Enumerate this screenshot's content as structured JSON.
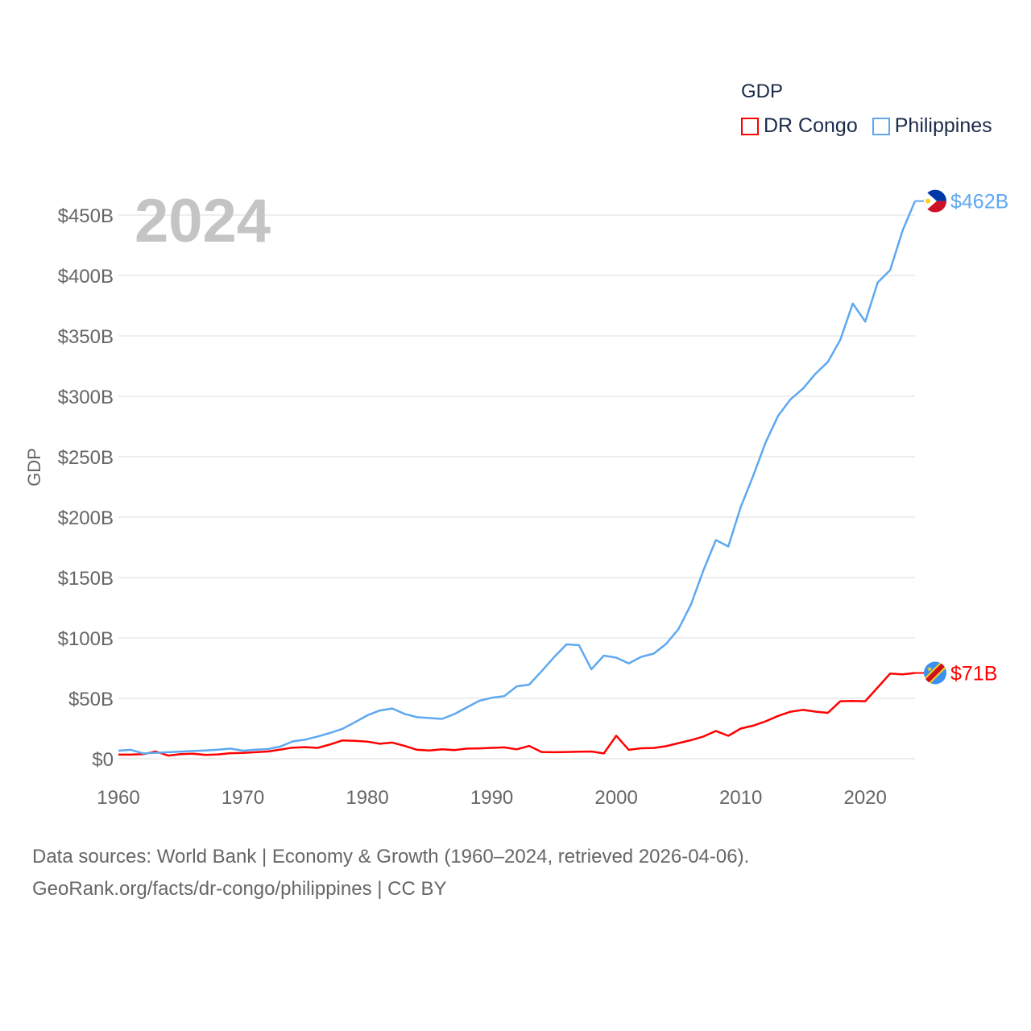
{
  "chart_data": {
    "type": "line",
    "title": "GDP",
    "ylabel": "GDP",
    "year_label": "2024",
    "xlim": [
      1960,
      2024
    ],
    "ylim": [
      0,
      450
    ],
    "x_ticks": [
      "1960",
      "1970",
      "1980",
      "1990",
      "2000",
      "2010",
      "2020"
    ],
    "y_ticks": [
      "$0",
      "$50B",
      "$100B",
      "$150B",
      "$200B",
      "$250B",
      "$300B",
      "$350B",
      "$400B",
      "$450B"
    ],
    "grid": true,
    "legend_placement": "top-right",
    "series": [
      {
        "name": "DR Congo",
        "color": "#ff0000",
        "end_label": "$71B",
        "flag": "dr-congo",
        "values": [
          3.4,
          3.4,
          3.8,
          6.0,
          2.6,
          3.8,
          4.2,
          3.2,
          3.6,
          4.6,
          4.8,
          5.4,
          6.0,
          7.6,
          9.2,
          9.6,
          9.0,
          11.8,
          15.2,
          14.8,
          14.2,
          12.4,
          13.4,
          10.6,
          7.4,
          6.8,
          7.8,
          7.2,
          8.4,
          8.6,
          9.0,
          9.4,
          7.8,
          10.6,
          5.6,
          5.4,
          5.6,
          5.8,
          6.0,
          4.4,
          19.1,
          7.4,
          8.7,
          8.9,
          10.4,
          12.9,
          15.4,
          18.4,
          23.0,
          19.0,
          25.0,
          27.4,
          31.0,
          35.5,
          38.9,
          40.5,
          39.0,
          38.0,
          47.6,
          47.8,
          47.6,
          59.0,
          70.5,
          69.8,
          71.0
        ]
      },
      {
        "name": "Philippines",
        "color": "#5ea8f0",
        "end_label": "$462B",
        "flag": "philippines",
        "values": [
          6.7,
          7.4,
          4.4,
          4.9,
          5.4,
          5.9,
          6.4,
          6.8,
          7.5,
          8.4,
          6.7,
          7.5,
          8.0,
          10.1,
          14.3,
          15.8,
          18.4,
          21.3,
          24.8,
          30.2,
          35.9,
          39.9,
          41.6,
          37.1,
          34.4,
          33.7,
          33.0,
          37.0,
          42.6,
          48.0,
          50.5,
          51.8,
          59.9,
          61.3,
          72.5,
          84.1,
          94.7,
          94.1,
          74.1,
          85.3,
          83.7,
          78.9,
          84.3,
          87.0,
          95.0,
          107.4,
          127.7,
          155.9,
          181.0,
          175.7,
          208.4,
          234.2,
          261.9,
          283.9,
          297.5,
          306.4,
          318.6,
          328.5,
          346.8,
          376.8,
          361.8,
          394.1,
          404.4,
          437.1,
          461.6
        ]
      }
    ]
  },
  "footer": {
    "line1": "Data sources: World Bank | Economy & Growth (1960–2024, retrieved 2026-04-06).",
    "line2": "GeoRank.org/facts/dr-congo/philippines | CC BY"
  }
}
